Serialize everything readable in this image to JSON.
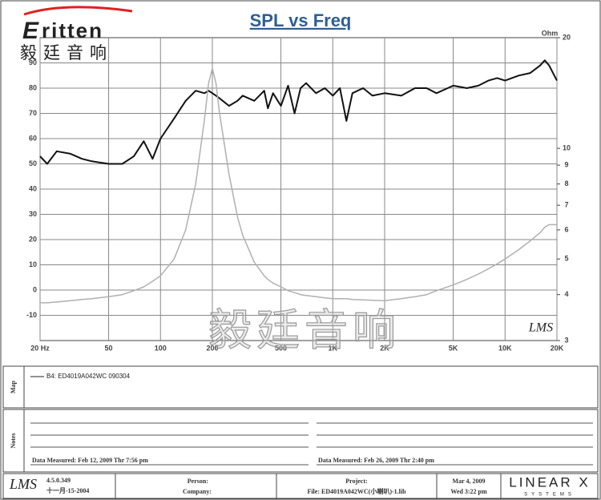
{
  "logo": {
    "brand": "ritten",
    "chinese": "毅廷音响"
  },
  "chart_data": {
    "type": "line",
    "title": "SPL vs Freq",
    "y2_label": "Ohm",
    "watermark": "毅廷音响",
    "mark": "LMS",
    "xscale": "log",
    "xlim": [
      20,
      20000
    ],
    "xticks": [
      {
        "value": 20,
        "label": "20 Hz"
      },
      50,
      100,
      200,
      500,
      {
        "value": 1000,
        "label": "1K"
      },
      {
        "value": 2000,
        "label": "2K"
      },
      {
        "value": 5000,
        "label": "5K"
      },
      {
        "value": 10000,
        "label": "10K"
      },
      {
        "value": 20000,
        "label": "20K"
      }
    ],
    "ylim": [
      -20,
      100
    ],
    "yticks": [
      -10,
      0,
      10,
      20,
      30,
      40,
      50,
      60,
      70,
      80,
      90
    ],
    "y2scale": "log",
    "y2lim": [
      3,
      20
    ],
    "y2ticks": [
      3,
      4,
      5,
      6,
      7,
      8,
      9,
      10,
      20
    ],
    "grid": true,
    "x": [
      20,
      22,
      25,
      30,
      35,
      40,
      50,
      60,
      70,
      80,
      90,
      100,
      120,
      140,
      160,
      180,
      190,
      200,
      210,
      220,
      250,
      280,
      300,
      350,
      400,
      420,
      450,
      500,
      550,
      600,
      650,
      700,
      800,
      900,
      1000,
      1100,
      1200,
      1300,
      1500,
      1700,
      2000,
      2500,
      3000,
      3500,
      4000,
      5000,
      6000,
      7000,
      8000,
      9000,
      10000,
      12000,
      14000,
      16000,
      17000,
      18000,
      20000
    ],
    "series": [
      {
        "color": "#111111",
        "values": [
          53,
          50,
          55,
          54,
          52,
          51,
          50,
          50,
          53,
          59,
          52,
          60,
          68,
          75,
          79,
          78,
          79,
          78,
          77,
          76,
          73,
          75,
          77,
          75,
          79,
          72,
          78,
          73,
          81,
          70,
          80,
          82,
          78,
          80,
          77,
          80,
          67,
          78,
          80,
          77,
          78,
          77,
          80,
          80,
          78,
          81,
          80,
          81,
          83,
          84,
          83,
          85,
          86,
          89,
          91,
          89,
          83
        ]
      },
      {
        "color": "#b0b0b0",
        "axis": "y2",
        "values": [
          3.8,
          3.8,
          3.82,
          3.85,
          3.88,
          3.9,
          3.95,
          4.0,
          4.1,
          4.2,
          4.35,
          4.5,
          5.0,
          6.0,
          8.0,
          12,
          15,
          16.5,
          15,
          12.5,
          8.5,
          6.5,
          5.8,
          4.9,
          4.5,
          4.4,
          4.3,
          4.2,
          4.1,
          4.05,
          4.0,
          3.98,
          3.95,
          3.92,
          3.9,
          3.9,
          3.9,
          3.88,
          3.87,
          3.86,
          3.85,
          3.9,
          3.95,
          4.0,
          4.1,
          4.25,
          4.4,
          4.55,
          4.7,
          4.85,
          5.0,
          5.3,
          5.6,
          5.9,
          6.1,
          6.2,
          6.2
        ]
      }
    ]
  },
  "map": {
    "label": "Map",
    "entry": "B4: ED4019A042WC    090304"
  },
  "notes": {
    "label": "Notes",
    "left": "Data Measured: Feb 12, 2009  Thr  7:56 pm",
    "right": "Data Measured: Feb 26, 2009  Thr  2:40 pm"
  },
  "footer": {
    "logo": "LMS",
    "version": "4.5.0.349",
    "date": "十一月-15-2004",
    "person": "Person:",
    "company": "Company:",
    "project": "Project:",
    "file": "File: ED4019A042WC(小喇叭)-1.lib",
    "printed_date": "Mar  4, 2009",
    "printed_time": "Wed  3:22 pm",
    "brand": "LINEAR X",
    "brand_sub": "SYSTEMS"
  }
}
